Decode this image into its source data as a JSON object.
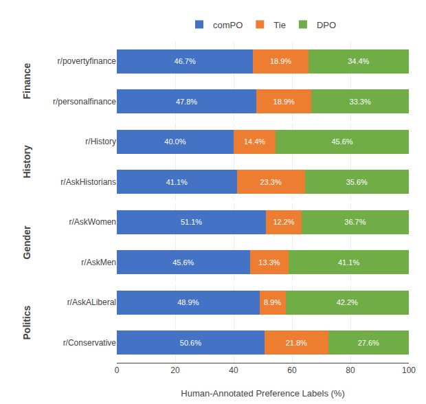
{
  "chart_data": {
    "type": "bar",
    "orientation": "horizontal",
    "stacked": true,
    "data_labels": true,
    "categories": [
      "r/povertyfinance",
      "r/personalfinance",
      "r/History",
      "r/AskHistorians",
      "r/AskWomen",
      "r/AskMen",
      "r/AskALiberal",
      "r/Conservative"
    ],
    "series": [
      {
        "name": "comPO",
        "color": "#4472C4",
        "values": [
          46.7,
          47.8,
          40.0,
          41.1,
          51.1,
          45.6,
          48.9,
          50.6
        ],
        "value_labels": [
          "46.7%",
          "47.8%",
          "40.0%",
          "41.1%",
          "51.1%",
          "45.6%",
          "48.9%",
          "50.6%"
        ]
      },
      {
        "name": "Tie",
        "color": "#ED7D31",
        "values": [
          18.9,
          18.9,
          14.4,
          23.3,
          12.2,
          13.3,
          8.9,
          21.8
        ],
        "value_labels": [
          "18.9%",
          "18.9%",
          "14.4%",
          "23.3%",
          "12.2%",
          "13.3%",
          "8.9%",
          "21.8%"
        ]
      },
      {
        "name": "DPO",
        "color": "#70AD47",
        "values": [
          34.4,
          33.3,
          45.6,
          35.6,
          36.7,
          41.1,
          42.2,
          27.6
        ],
        "value_labels": [
          "34.4%",
          "33.3%",
          "45.6%",
          "35.6%",
          "36.7%",
          "41.1%",
          "42.2%",
          "27.6%"
        ]
      }
    ],
    "xlabel": "Human-Annotated Preference Labels (%)",
    "xlim": [
      0,
      100
    ],
    "xticks": [
      0,
      20,
      40,
      60,
      80,
      100
    ],
    "grid": true,
    "legend": "top",
    "groups": [
      {
        "label": "Finance",
        "categories": [
          "r/povertyfinance",
          "r/personalfinance"
        ]
      },
      {
        "label": "History",
        "categories": [
          "r/History",
          "r/AskHistorians"
        ]
      },
      {
        "label": "Gender",
        "categories": [
          "r/AskWomen",
          "r/AskMen"
        ]
      },
      {
        "label": "Politics",
        "categories": [
          "r/AskALiberal",
          "r/Conservative"
        ]
      }
    ]
  }
}
